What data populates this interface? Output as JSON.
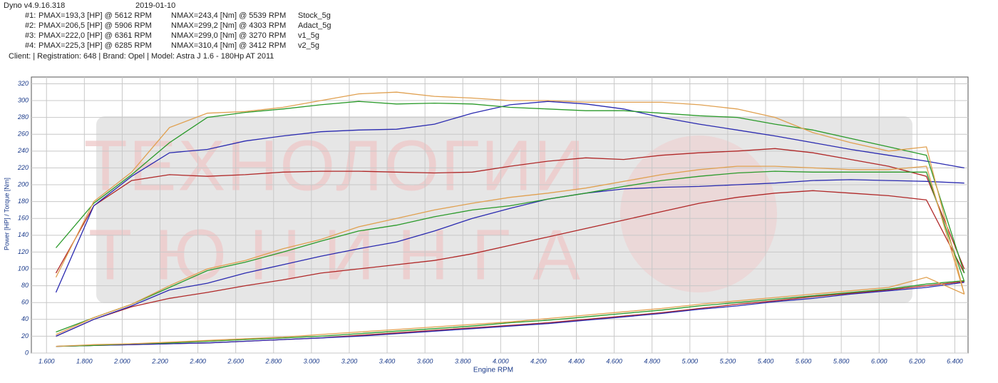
{
  "chart_data": {
    "type": "line",
    "software": "Dyno v4.9.16.318",
    "date": "2019-01-10",
    "client": "Client:  | Registration: 648 | Brand: Opel | Model: Astra J 1.6 - 180Hp AT 2011",
    "x_label": "Engine RPM",
    "y_label": "Power [HP] / Torque [Nm]",
    "watermark": [
      "ТЕХНОЛОГИИ",
      "Т Ю Н И Н Г А"
    ],
    "grid": true,
    "x": [
      1650,
      1850,
      2050,
      2250,
      2450,
      2650,
      2850,
      3050,
      3250,
      3450,
      3650,
      3850,
      4050,
      4250,
      4450,
      4650,
      4850,
      5050,
      5250,
      5450,
      5650,
      5850,
      6050,
      6250,
      6450
    ],
    "xlim": [
      1520,
      6470
    ],
    "ylim": [
      0,
      328
    ],
    "xticks": [
      {
        "value": 1600,
        "label": "1.600"
      },
      {
        "value": 1800,
        "label": "1.800"
      },
      {
        "value": 2000,
        "label": "2.000"
      },
      {
        "value": 2200,
        "label": "2.200"
      },
      {
        "value": 2400,
        "label": "2.400"
      },
      {
        "value": 2600,
        "label": "2.600"
      },
      {
        "value": 2800,
        "label": "2.800"
      },
      {
        "value": 3000,
        "label": "3.000"
      },
      {
        "value": 3200,
        "label": "3.200"
      },
      {
        "value": 3400,
        "label": "3.400"
      },
      {
        "value": 3600,
        "label": "3.600"
      },
      {
        "value": 3800,
        "label": "3.800"
      },
      {
        "value": 4000,
        "label": "4.000"
      },
      {
        "value": 4200,
        "label": "4.200"
      },
      {
        "value": 4400,
        "label": "4.400"
      },
      {
        "value": 4600,
        "label": "4.600"
      },
      {
        "value": 4800,
        "label": "4.800"
      },
      {
        "value": 5000,
        "label": "5.000"
      },
      {
        "value": 5200,
        "label": "5.200"
      },
      {
        "value": 5400,
        "label": "5.400"
      },
      {
        "value": 5600,
        "label": "5.600"
      },
      {
        "value": 5800,
        "label": "5.800"
      },
      {
        "value": 6000,
        "label": "6.000"
      },
      {
        "value": 6200,
        "label": "6.200"
      },
      {
        "value": 6400,
        "label": "6.400"
      }
    ],
    "yticks": [
      0,
      20,
      40,
      60,
      80,
      100,
      120,
      140,
      160,
      180,
      200,
      220,
      240,
      260,
      280,
      300,
      320
    ],
    "runs": [
      {
        "id": "#1:",
        "pmax": "PMAX=193,3 [HP] @ 5612 RPM",
        "nmax": "NMAX=243,4 [Nm] @ 5539 RPM",
        "name": "Stock_5g",
        "color": "#b02828",
        "torque": [
          95,
          175,
          205,
          212,
          210,
          212,
          215,
          216,
          216,
          215,
          214,
          215,
          222,
          228,
          232,
          230,
          235,
          238,
          240,
          243,
          238,
          230,
          222,
          210,
          100
        ],
        "power": [
          20,
          40,
          55,
          65,
          72,
          80,
          87,
          95,
          100,
          105,
          110,
          118,
          128,
          138,
          148,
          158,
          168,
          178,
          185,
          190,
          193,
          190,
          187,
          182,
          95
        ],
        "loss": [
          8,
          9,
          10,
          11,
          12,
          14,
          16,
          18,
          21,
          24,
          27,
          30,
          33,
          36,
          40,
          44,
          48,
          53,
          58,
          62,
          67,
          71,
          75,
          80,
          85
        ]
      },
      {
        "id": "#2:",
        "pmax": "PMAX=206,5 [HP] @ 5906 RPM",
        "nmax": "NMAX=299,2 [Nm] @ 4303 RPM",
        "name": "Adact_5g",
        "color": "#2a2ab0",
        "torque": [
          72,
          175,
          210,
          238,
          242,
          252,
          258,
          263,
          265,
          266,
          272,
          285,
          295,
          299,
          296,
          290,
          280,
          272,
          265,
          258,
          250,
          242,
          235,
          228,
          220
        ],
        "power": [
          20,
          40,
          56,
          75,
          83,
          95,
          105,
          115,
          124,
          132,
          145,
          160,
          172,
          183,
          190,
          195,
          197,
          198,
          200,
          202,
          205,
          206,
          205,
          204,
          202
        ],
        "loss": [
          8,
          9,
          10,
          11,
          12,
          14,
          16,
          18,
          20,
          23,
          26,
          29,
          32,
          35,
          39,
          43,
          47,
          52,
          56,
          61,
          65,
          70,
          74,
          78,
          84
        ]
      },
      {
        "id": "#3:",
        "pmax": "PMAX=222,0 [HP] @ 6361 RPM",
        "nmax": "NMAX=299,0 [Nm] @ 3270 RPM",
        "name": "v1_5g",
        "color": "#2a9a2a",
        "torque": [
          125,
          178,
          212,
          250,
          280,
          286,
          290,
          295,
          299,
          296,
          297,
          296,
          292,
          290,
          288,
          288,
          285,
          282,
          280,
          272,
          265,
          255,
          245,
          235,
          95
        ],
        "power": [
          25,
          42,
          58,
          78,
          98,
          108,
          120,
          133,
          145,
          152,
          162,
          170,
          175,
          183,
          190,
          198,
          205,
          210,
          214,
          216,
          215,
          215,
          215,
          215,
          85
        ],
        "loss": [
          8,
          9,
          11,
          12,
          14,
          16,
          18,
          20,
          23,
          26,
          29,
          32,
          36,
          39,
          43,
          47,
          51,
          56,
          60,
          64,
          68,
          72,
          76,
          82,
          86
        ]
      },
      {
        "id": "#4:",
        "pmax": "PMAX=225,3 [HP] @ 6285 RPM",
        "nmax": "NMAX=310,4 [Nm] @ 3412 RPM",
        "name": "v2_5g",
        "color": "#e0a050",
        "torque": [
          90,
          180,
          215,
          268,
          285,
          287,
          292,
          300,
          308,
          310,
          305,
          303,
          300,
          300,
          298,
          298,
          298,
          295,
          290,
          280,
          262,
          250,
          240,
          245,
          70
        ],
        "power": [
          22,
          42,
          58,
          80,
          100,
          110,
          124,
          135,
          150,
          160,
          170,
          178,
          185,
          190,
          196,
          204,
          212,
          218,
          222,
          222,
          220,
          218,
          218,
          222,
          70
        ],
        "loss": [
          8,
          10,
          11,
          13,
          15,
          17,
          19,
          22,
          25,
          28,
          31,
          34,
          37,
          41,
          45,
          49,
          53,
          58,
          62,
          66,
          70,
          74,
          78,
          90,
          70
        ]
      }
    ]
  }
}
